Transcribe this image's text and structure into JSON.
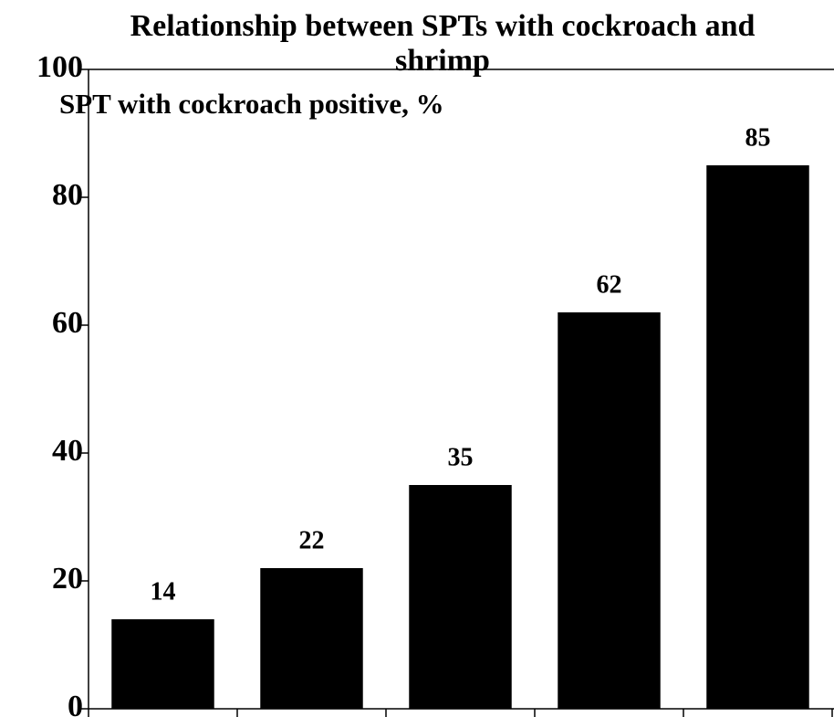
{
  "chart_data": {
    "type": "bar",
    "title": "Relationship between SPTs with cockroach and shrimp",
    "y_label": "SPT with cockroach positive, %",
    "categories": [
      null,
      null,
      null,
      null,
      null
    ],
    "values": [
      14,
      22,
      35,
      62,
      85
    ],
    "color": "#000000",
    "ylim": [
      0,
      100
    ],
    "yticks": [
      0,
      20,
      40,
      60,
      80,
      100
    ],
    "grid": false
  }
}
